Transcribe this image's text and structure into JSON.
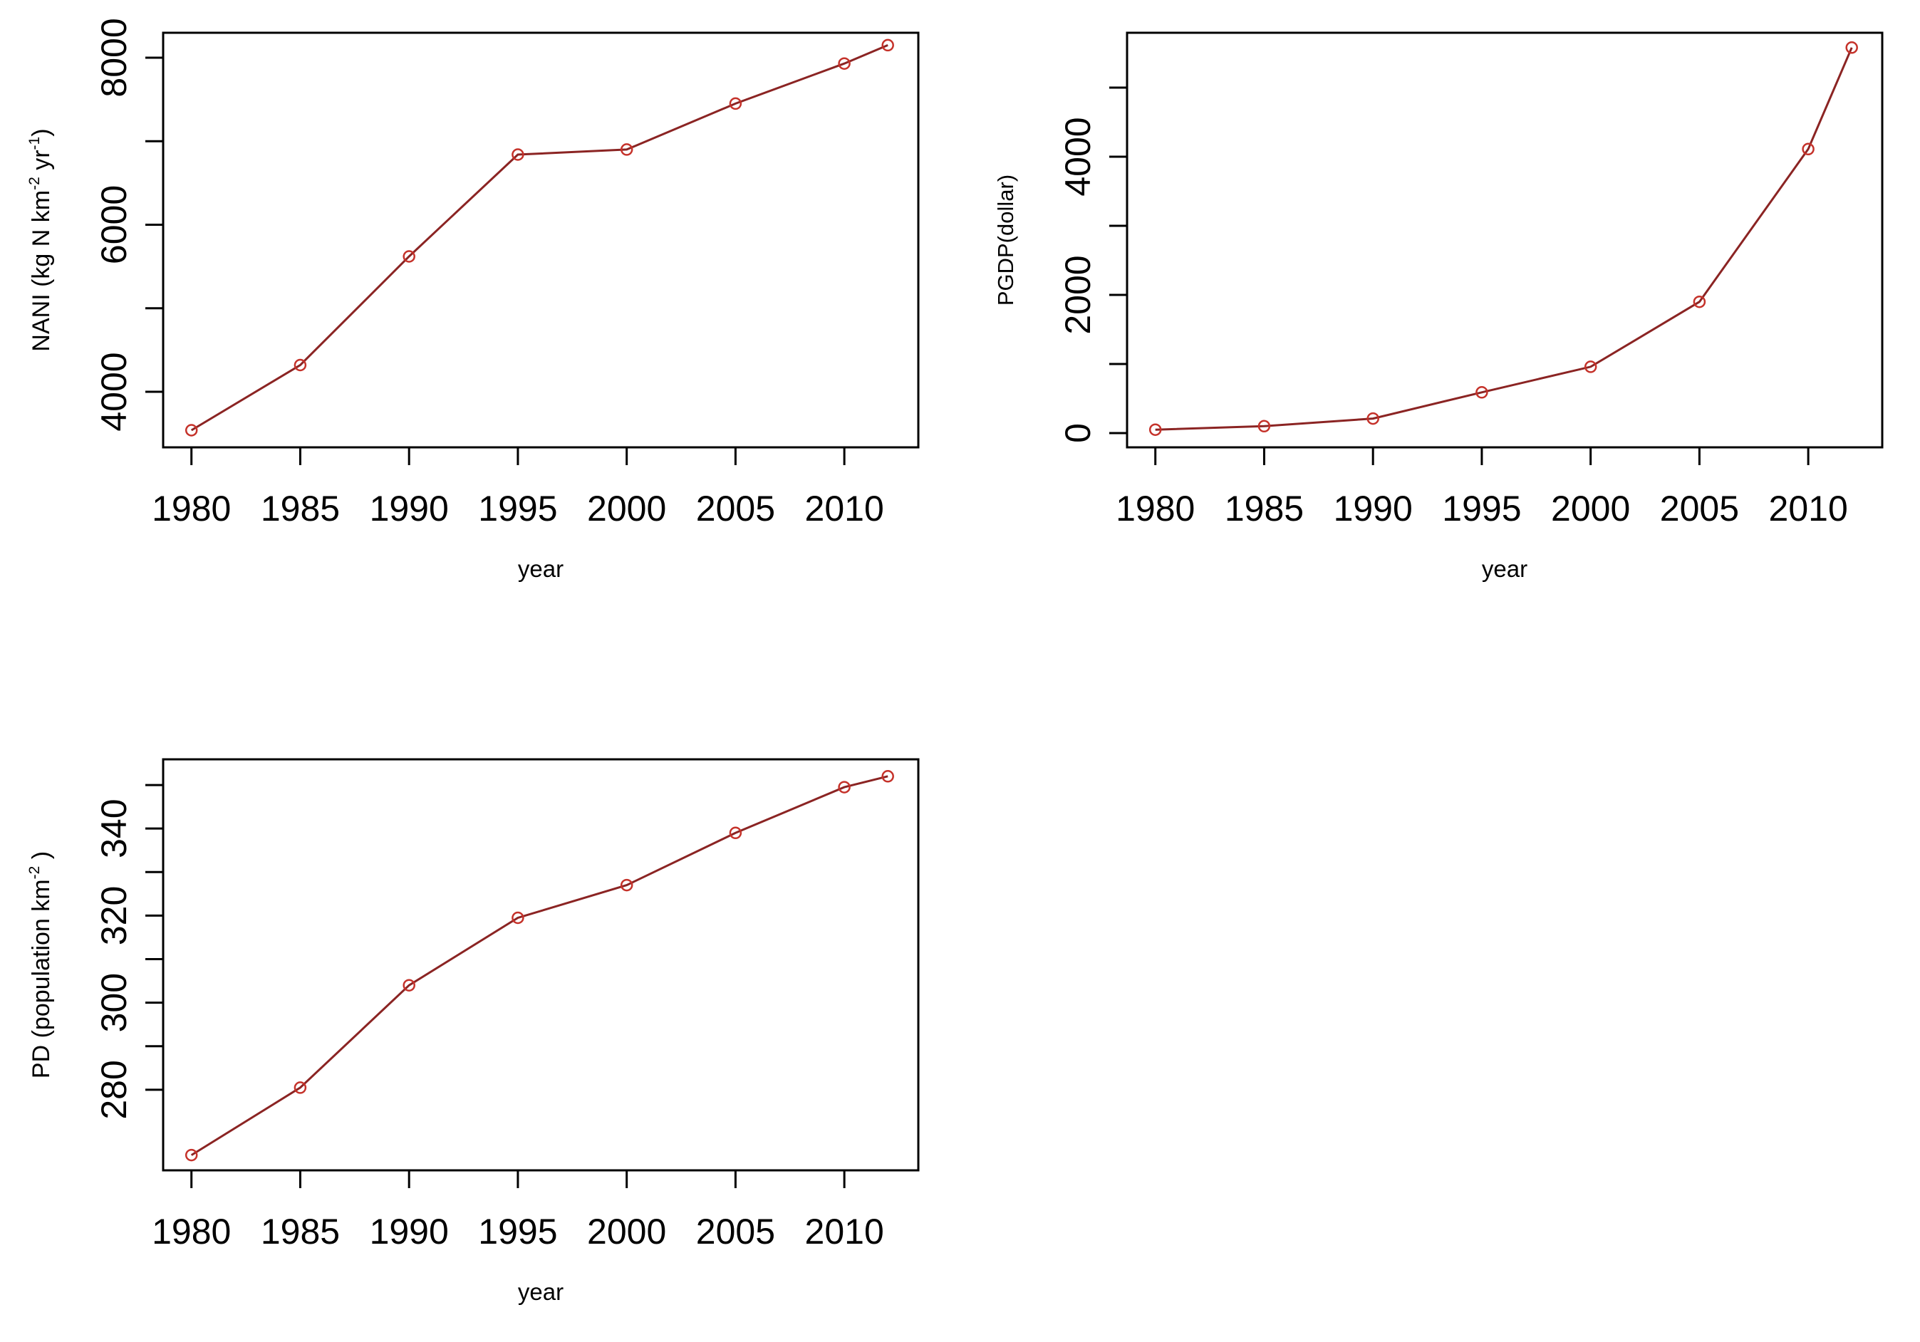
{
  "figure": {
    "background": "#ffffff",
    "description": "Three R-style line plots: NANI, PGDP and PD versus year",
    "axis_color": "#000000",
    "line_color": "#8b2423",
    "marker_color": "#c5322a"
  },
  "chart_data": [
    {
      "id": "nani",
      "type": "line",
      "title": "",
      "xlabel": "year",
      "ylabel": "NANI (kg N km-2 yr-1)",
      "ylabel_segments": [
        {
          "t": "NANI (kg N km"
        },
        {
          "t": "-2",
          "sup": true
        },
        {
          "t": " yr"
        },
        {
          "t": "-1",
          "sup": true
        },
        {
          "t": ")"
        }
      ],
      "x": [
        1980,
        1985,
        1990,
        1995,
        2000,
        2005,
        2010,
        2012
      ],
      "series": [
        {
          "name": "NANI",
          "values": [
            3540,
            4320,
            5620,
            6840,
            6900,
            7450,
            7930,
            8150
          ]
        }
      ],
      "xlim": [
        1978.7,
        2013.4
      ],
      "ylim": [
        3335,
        8298
      ],
      "x_ticks": [
        1980,
        1985,
        1990,
        1995,
        2000,
        2005,
        2010
      ],
      "y_ticks": [
        {
          "v": 4000,
          "label": "4000"
        },
        {
          "v": 5000,
          "label": ""
        },
        {
          "v": 6000,
          "label": "6000"
        },
        {
          "v": 7000,
          "label": ""
        },
        {
          "v": 8000,
          "label": "8000"
        }
      ],
      "grid": false,
      "legend": null,
      "line_color": "#8b2423",
      "marker_color": "#c5322a",
      "marker": "open-circle"
    },
    {
      "id": "pgdp",
      "type": "line",
      "title": "",
      "xlabel": "year",
      "ylabel": "PGDP(dollar)",
      "ylabel_segments": [
        {
          "t": "PGDP(dollar)"
        }
      ],
      "x": [
        1980,
        1985,
        1990,
        1995,
        2000,
        2005,
        2010,
        2012
      ],
      "series": [
        {
          "name": "PGDP",
          "values": [
            50,
            100,
            210,
            590,
            960,
            1900,
            4110,
            5580
          ]
        }
      ],
      "xlim": [
        1978.7,
        2013.4
      ],
      "ylim": [
        -206,
        5794
      ],
      "x_ticks": [
        1980,
        1985,
        1990,
        1995,
        2000,
        2005,
        2010
      ],
      "y_ticks": [
        {
          "v": 0,
          "label": "0"
        },
        {
          "v": 1000,
          "label": ""
        },
        {
          "v": 2000,
          "label": "2000"
        },
        {
          "v": 3000,
          "label": ""
        },
        {
          "v": 4000,
          "label": "4000"
        },
        {
          "v": 5000,
          "label": ""
        }
      ],
      "grid": false,
      "legend": null,
      "line_color": "#8b2423",
      "marker_color": "#c5322a",
      "marker": "open-circle"
    },
    {
      "id": "pd",
      "type": "line",
      "title": "",
      "xlabel": "year",
      "ylabel": "PD (population  km-2 )",
      "ylabel_segments": [
        {
          "t": "PD (population  km"
        },
        {
          "t": "-2",
          "sup": true
        },
        {
          "t": " )"
        }
      ],
      "x": [
        1980,
        1985,
        1990,
        1995,
        2000,
        2005,
        2010,
        2012
      ],
      "series": [
        {
          "name": "PD",
          "values": [
            265,
            280.5,
            304,
            319.5,
            327,
            339,
            349.5,
            352
          ]
        }
      ],
      "xlim": [
        1978.7,
        2013.4
      ],
      "ylim": [
        261.5,
        355.9
      ],
      "x_ticks": [
        1980,
        1985,
        1990,
        1995,
        2000,
        2005,
        2010
      ],
      "y_ticks": [
        {
          "v": 280,
          "label": "280"
        },
        {
          "v": 290,
          "label": ""
        },
        {
          "v": 300,
          "label": "300"
        },
        {
          "v": 310,
          "label": ""
        },
        {
          "v": 320,
          "label": "320"
        },
        {
          "v": 330,
          "label": ""
        },
        {
          "v": 340,
          "label": "340"
        },
        {
          "v": 350,
          "label": ""
        }
      ],
      "grid": false,
      "legend": null,
      "line_color": "#8b2423",
      "marker_color": "#c5322a",
      "marker": "open-circle"
    }
  ]
}
